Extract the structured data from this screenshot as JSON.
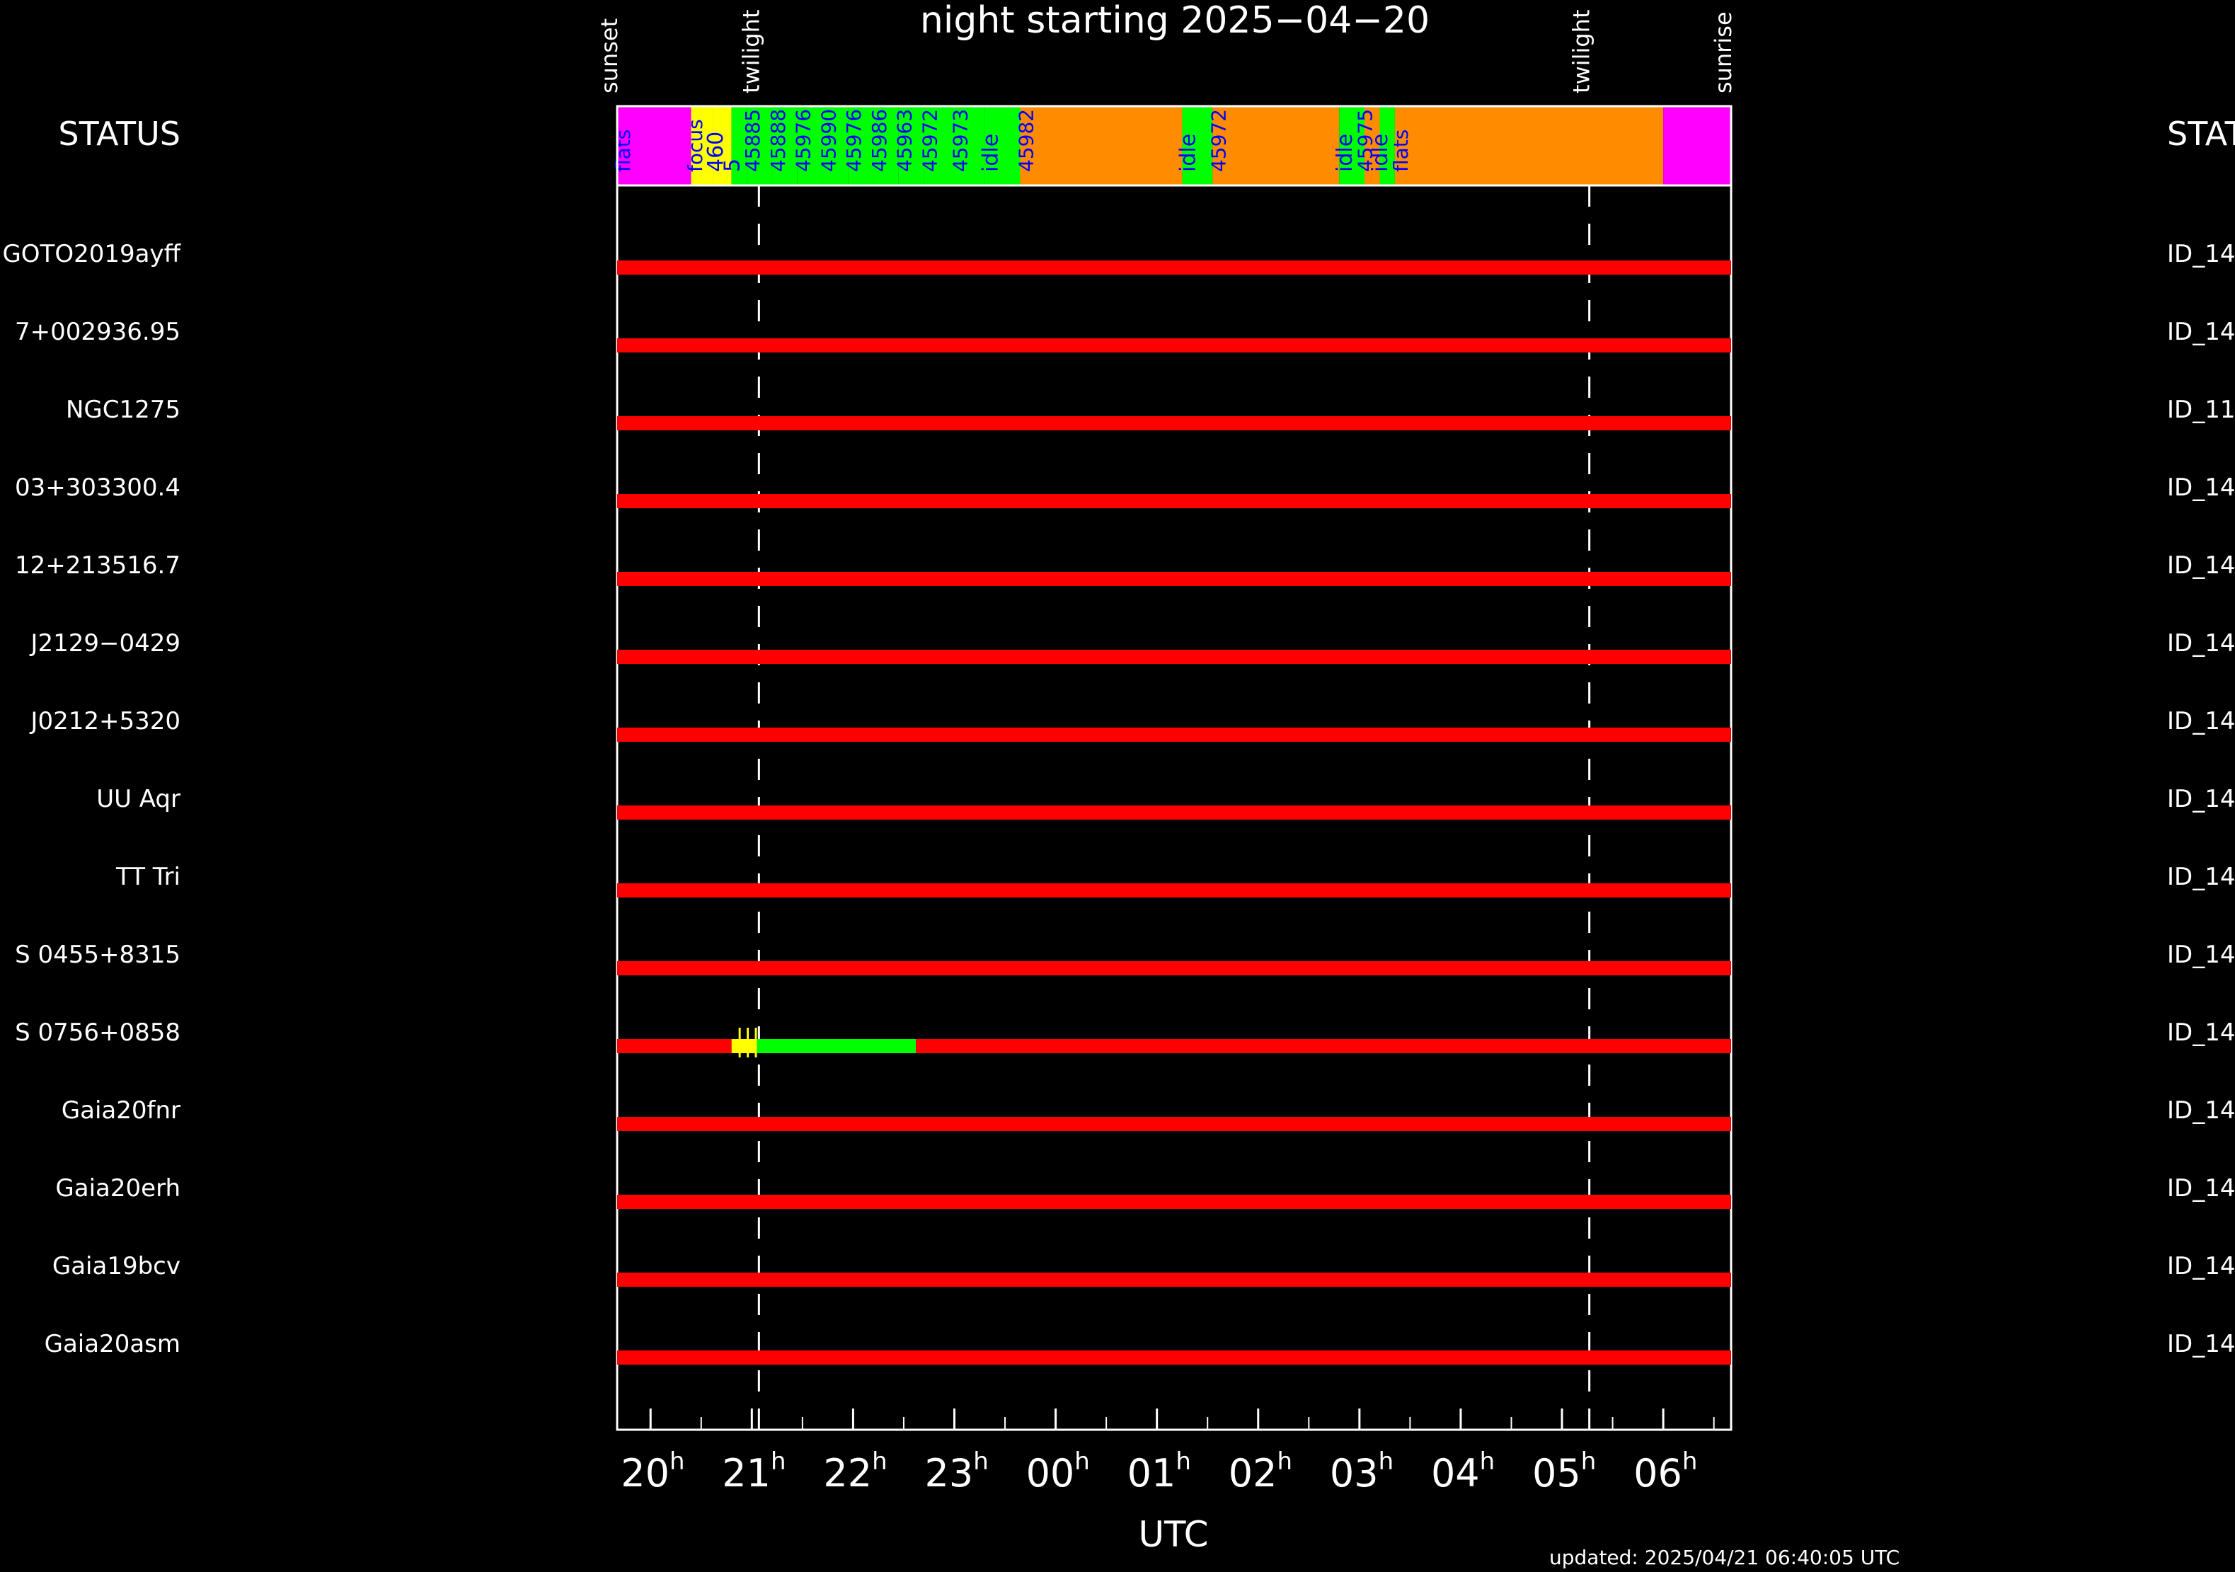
{
  "chart_data": {
    "type": "timeline",
    "title": "night starting 2025−04−20",
    "status_label_left": "STATUS",
    "status_label_right": "STAT",
    "xlabel": "UTC",
    "updated": "updated: 2025/04/21 06:40:05 UTC",
    "x_unit": "hours_since_20h_UTC_2025-04-20",
    "xlim": [
      -0.33,
      10.67
    ],
    "markers": [
      {
        "label": "sunset",
        "x": -0.33,
        "dashed": false
      },
      {
        "label": "twilight",
        "x": 1.07,
        "dashed": true
      },
      {
        "label": "twilight",
        "x": 9.27,
        "dashed": true
      },
      {
        "label": "sunrise",
        "x": 10.67,
        "dashed": false
      }
    ],
    "xticks": [
      {
        "x": 0,
        "label": "20",
        "sup": "h"
      },
      {
        "x": 1,
        "label": "21",
        "sup": "h"
      },
      {
        "x": 2,
        "label": "22",
        "sup": "h"
      },
      {
        "x": 3,
        "label": "23",
        "sup": "h"
      },
      {
        "x": 4,
        "label": "00",
        "sup": "h"
      },
      {
        "x": 5,
        "label": "01",
        "sup": "h"
      },
      {
        "x": 6,
        "label": "02",
        "sup": "h"
      },
      {
        "x": 7,
        "label": "03",
        "sup": "h"
      },
      {
        "x": 8,
        "label": "04",
        "sup": "h"
      },
      {
        "x": 9,
        "label": "05",
        "sup": "h"
      },
      {
        "x": 10,
        "label": "06",
        "sup": "h"
      }
    ],
    "colors": {
      "background": "#000000",
      "axes": "#ffffff",
      "not_observed": "#ff0000",
      "observed": "#00ff00",
      "acquisition": "#ffff00",
      "flats": "#ff00ff",
      "focus": "#ff00ff",
      "idle": "#00ff00",
      "queue": "#ff8c00",
      "status_text": "#0000ff",
      "idle_text": "#0000ff"
    },
    "status_bar": [
      {
        "start": -0.33,
        "end": 0.4,
        "color": "#ff00ff",
        "label": "flats"
      },
      {
        "start": 0.4,
        "end": 0.62,
        "color": "#ffff00",
        "label": "focus"
      },
      {
        "start": 0.62,
        "end": 0.8,
        "color": "#ffff00",
        "label": "460"
      },
      {
        "start": 0.8,
        "end": 0.95,
        "color": "#00ff00",
        "label": "5"
      },
      {
        "start": 0.95,
        "end": 1.2,
        "color": "#00ff00",
        "label": "45885"
      },
      {
        "start": 1.2,
        "end": 1.45,
        "color": "#00ff00",
        "label": "45888"
      },
      {
        "start": 1.45,
        "end": 1.7,
        "color": "#00ff00",
        "label": "45976"
      },
      {
        "start": 1.7,
        "end": 1.95,
        "color": "#00ff00",
        "label": "45990"
      },
      {
        "start": 1.95,
        "end": 2.2,
        "color": "#00ff00",
        "label": "45976"
      },
      {
        "start": 2.2,
        "end": 2.45,
        "color": "#00ff00",
        "label": "45986"
      },
      {
        "start": 2.45,
        "end": 2.7,
        "color": "#00ff00",
        "label": "45963"
      },
      {
        "start": 2.7,
        "end": 3.0,
        "color": "#00ff00",
        "label": "45972"
      },
      {
        "start": 3.0,
        "end": 3.3,
        "color": "#00ff00",
        "label": "45973"
      },
      {
        "start": 3.3,
        "end": 3.65,
        "color": "#00ff00",
        "label": "idle"
      },
      {
        "start": 3.65,
        "end": 5.25,
        "color": "#ff8c00",
        "label": "45982"
      },
      {
        "start": 5.25,
        "end": 5.55,
        "color": "#00ff00",
        "label": "idle"
      },
      {
        "start": 5.55,
        "end": 6.8,
        "color": "#ff8c00",
        "label": "45972"
      },
      {
        "start": 6.8,
        "end": 7.05,
        "color": "#00ff00",
        "label": "idle"
      },
      {
        "start": 7.05,
        "end": 7.2,
        "color": "#ff8c00",
        "label": "45975"
      },
      {
        "start": 7.2,
        "end": 7.35,
        "color": "#00ff00",
        "label": "idle"
      },
      {
        "start": 7.35,
        "end": 10.0,
        "color": "#ff8c00",
        "label": "flats"
      },
      {
        "start": 10.0,
        "end": 10.67,
        "color": "#ff00ff",
        "label": ""
      }
    ],
    "rows": [
      {
        "left": "GOTO2019ayff",
        "right": "ID_14",
        "segments": [
          {
            "start": -0.33,
            "end": 10.67,
            "status": "not_observed"
          }
        ]
      },
      {
        "left": "7+002936.95",
        "right": "ID_14",
        "segments": [
          {
            "start": -0.33,
            "end": 10.67,
            "status": "not_observed"
          }
        ]
      },
      {
        "left": "NGC1275",
        "right": "ID_11",
        "segments": [
          {
            "start": -0.33,
            "end": 10.67,
            "status": "not_observed"
          }
        ]
      },
      {
        "left": "03+303300.4",
        "right": "ID_14",
        "segments": [
          {
            "start": -0.33,
            "end": 10.67,
            "status": "not_observed"
          }
        ]
      },
      {
        "left": "12+213516.7",
        "right": "ID_14",
        "segments": [
          {
            "start": -0.33,
            "end": 10.67,
            "status": "not_observed"
          }
        ]
      },
      {
        "left": "J2129−0429",
        "right": "ID_14",
        "segments": [
          {
            "start": -0.33,
            "end": 10.67,
            "status": "not_observed"
          }
        ]
      },
      {
        "left": "J0212+5320",
        "right": "ID_14",
        "segments": [
          {
            "start": -0.33,
            "end": 10.67,
            "status": "not_observed"
          }
        ]
      },
      {
        "left": "UU Aqr",
        "right": "ID_14",
        "segments": [
          {
            "start": -0.33,
            "end": 10.67,
            "status": "not_observed"
          }
        ]
      },
      {
        "left": "TT Tri",
        "right": "ID_14",
        "segments": [
          {
            "start": -0.33,
            "end": 10.67,
            "status": "not_observed"
          }
        ]
      },
      {
        "left": "S 0455+8315",
        "right": "ID_14",
        "segments": [
          {
            "start": -0.33,
            "end": 10.67,
            "status": "not_observed"
          }
        ]
      },
      {
        "left": "S 0756+0858",
        "right": "ID_14",
        "segments": [
          {
            "start": -0.33,
            "end": 0.8,
            "status": "not_observed"
          },
          {
            "start": 0.8,
            "end": 1.05,
            "status": "acquisition"
          },
          {
            "start": 1.05,
            "end": 2.62,
            "status": "observed"
          },
          {
            "start": 2.62,
            "end": 10.67,
            "status": "not_observed"
          }
        ]
      },
      {
        "left": "Gaia20fnr",
        "right": "ID_14",
        "segments": [
          {
            "start": -0.33,
            "end": 10.67,
            "status": "not_observed"
          }
        ]
      },
      {
        "left": "Gaia20erh",
        "right": "ID_14",
        "segments": [
          {
            "start": -0.33,
            "end": 10.67,
            "status": "not_observed"
          }
        ]
      },
      {
        "left": "Gaia19bcv",
        "right": "ID_14",
        "segments": [
          {
            "start": -0.33,
            "end": 10.67,
            "status": "not_observed"
          }
        ]
      },
      {
        "left": "Gaia20asm",
        "right": "ID_14",
        "segments": [
          {
            "start": -0.33,
            "end": 10.67,
            "status": "not_observed"
          }
        ]
      }
    ]
  }
}
